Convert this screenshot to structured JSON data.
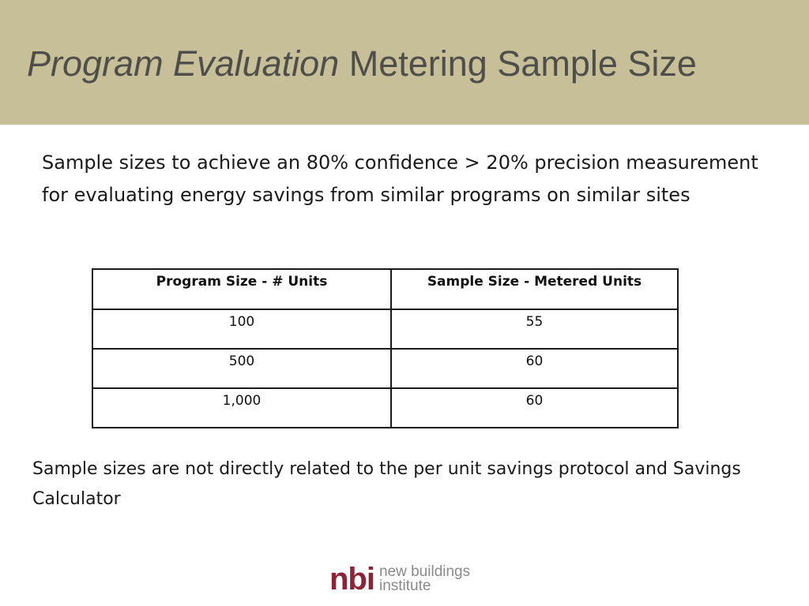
{
  "slide": {
    "title_italic": "Program Evaluation",
    "title_rest": " Metering Sample Size",
    "intro_text": "Sample sizes to achieve an 80% confidence > 20% precision measurement for evaluating energy savings from similar programs on similar sites",
    "footnote_text": "Sample sizes are not directly related to the per unit savings protocol and Savings Calculator"
  },
  "table": {
    "headers": [
      "Program Size - # Units",
      "Sample Size - Metered Units"
    ],
    "rows": [
      [
        "100",
        "55"
      ],
      [
        "500",
        "60"
      ],
      [
        "1,000",
        "60"
      ]
    ]
  },
  "logo": {
    "mark": "nbi",
    "line1": "new buildings",
    "line2": "institute"
  },
  "colors": {
    "header_band": "#c6bf98",
    "title_text": "#4f4e4a",
    "logo_mark": "#8e2238",
    "logo_words": "#8a8a8a"
  }
}
